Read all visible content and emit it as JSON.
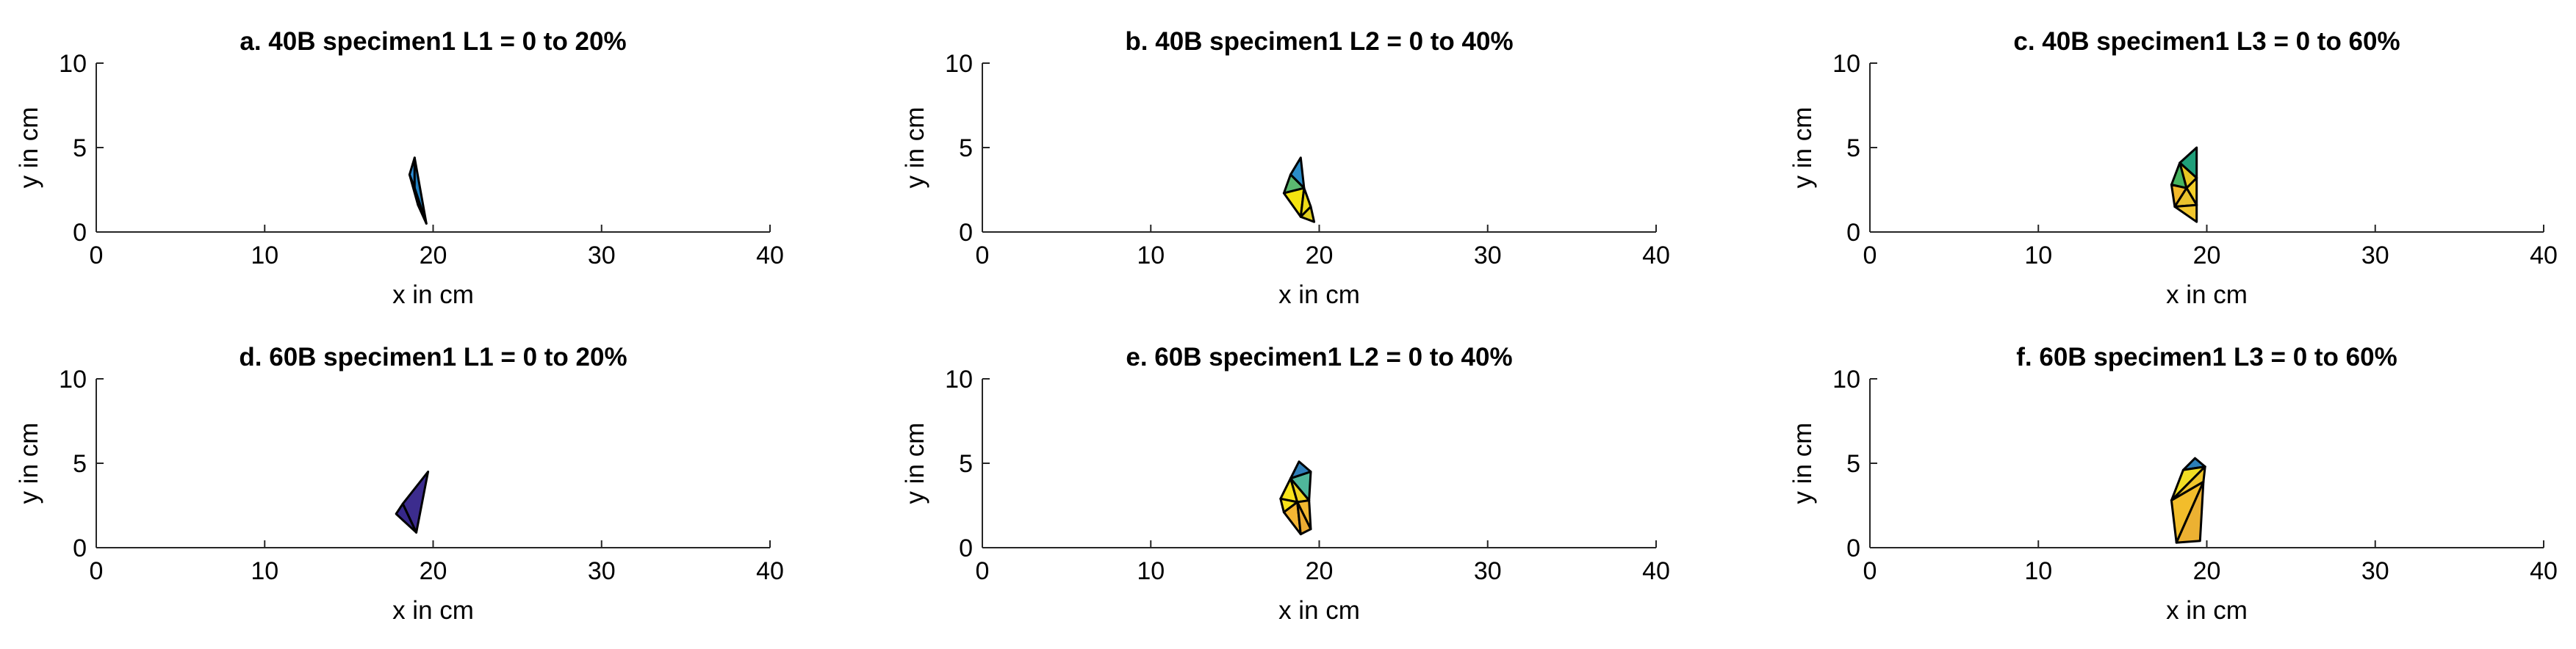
{
  "figure": {
    "background": "#ffffff",
    "axis_color": "#262626",
    "edge_color": "#000000"
  },
  "chart_data": [
    {
      "type": "scatter",
      "subtype": "filled-triangulation",
      "title": "a. 40B specimen1 L1 = 0 to 20%",
      "xlabel": "x in cm",
      "ylabel": "y in cm",
      "xlim": [
        0,
        40
      ],
      "ylim": [
        0,
        10
      ],
      "xticks": [
        "0",
        "10",
        "20",
        "30",
        "40"
      ],
      "yticks": [
        "0",
        "5",
        "10"
      ],
      "grid": false,
      "points": [
        [
          18.9,
          4.4
        ],
        [
          18.6,
          3.4
        ],
        [
          18.9,
          2.6
        ],
        [
          19.1,
          1.6
        ],
        [
          19.6,
          0.5
        ]
      ],
      "triangles": [
        {
          "v": [
            0,
            1,
            2
          ],
          "color": "#2C8FD9"
        },
        {
          "v": [
            0,
            2,
            4
          ],
          "color": "#1F7FC0"
        },
        {
          "v": [
            1,
            2,
            3
          ],
          "color": "#F9E521"
        },
        {
          "v": [
            2,
            3,
            4
          ],
          "color": "#E8D21C"
        }
      ]
    },
    {
      "type": "scatter",
      "subtype": "filled-triangulation",
      "title": "b. 40B specimen1 L2 = 0 to 40%",
      "xlabel": "x in cm",
      "ylabel": "y in cm",
      "xlim": [
        0,
        40
      ],
      "ylim": [
        0,
        10
      ],
      "xticks": [
        "0",
        "10",
        "20",
        "30",
        "40"
      ],
      "yticks": [
        "0",
        "5",
        "10"
      ],
      "grid": false,
      "points": [
        [
          18.9,
          4.4
        ],
        [
          18.3,
          3.4
        ],
        [
          17.9,
          2.3
        ],
        [
          19.1,
          2.6
        ],
        [
          19.5,
          1.5
        ],
        [
          19.7,
          0.6
        ],
        [
          18.9,
          0.9
        ]
      ],
      "triangles": [
        {
          "v": [
            0,
            1,
            3
          ],
          "color": "#2A8CC8"
        },
        {
          "v": [
            1,
            2,
            3
          ],
          "color": "#5BB870"
        },
        {
          "v": [
            2,
            3,
            6
          ],
          "color": "#F5E30F"
        },
        {
          "v": [
            3,
            4,
            6
          ],
          "color": "#EEDB18"
        },
        {
          "v": [
            4,
            5,
            6
          ],
          "color": "#E2CF20"
        }
      ]
    },
    {
      "type": "scatter",
      "subtype": "filled-triangulation",
      "title": "c. 40B specimen1 L3 = 0 to 60%",
      "xlabel": "x in cm",
      "ylabel": "y in cm",
      "xlim": [
        0,
        40
      ],
      "ylim": [
        0,
        10
      ],
      "xticks": [
        "0",
        "10",
        "20",
        "30",
        "40"
      ],
      "yticks": [
        "0",
        "5",
        "10"
      ],
      "grid": false,
      "points": [
        [
          19.4,
          5.0
        ],
        [
          18.4,
          4.1
        ],
        [
          17.9,
          2.8
        ],
        [
          18.1,
          1.5
        ],
        [
          19.4,
          0.6
        ],
        [
          19.4,
          3.2
        ],
        [
          18.8,
          2.6
        ],
        [
          19.4,
          1.6
        ]
      ],
      "triangles": [
        {
          "v": [
            0,
            1,
            5
          ],
          "color": "#1F9F7A"
        },
        {
          "v": [
            1,
            2,
            6
          ],
          "color": "#46B460"
        },
        {
          "v": [
            1,
            5,
            6
          ],
          "color": "#E8C522"
        },
        {
          "v": [
            2,
            3,
            6
          ],
          "color": "#F2B82A"
        },
        {
          "v": [
            5,
            6,
            7
          ],
          "color": "#F4D02A"
        },
        {
          "v": [
            3,
            6,
            7
          ],
          "color": "#E9C22D"
        },
        {
          "v": [
            3,
            4,
            7
          ],
          "color": "#F2C72E"
        }
      ]
    },
    {
      "type": "scatter",
      "subtype": "filled-triangulation",
      "title": "d. 60B specimen1 L1 = 0 to 20%",
      "xlabel": "x in cm",
      "ylabel": "y in cm",
      "xlim": [
        0,
        40
      ],
      "ylim": [
        0,
        10
      ],
      "xticks": [
        "0",
        "10",
        "20",
        "30",
        "40"
      ],
      "yticks": [
        "0",
        "5",
        "10"
      ],
      "grid": false,
      "points": [
        [
          19.7,
          4.5
        ],
        [
          18.2,
          2.6
        ],
        [
          17.8,
          2.0
        ],
        [
          19.0,
          0.9
        ]
      ],
      "triangles": [
        {
          "v": [
            0,
            1,
            3
          ],
          "color": "#3C2C8E"
        },
        {
          "v": [
            1,
            2,
            3
          ],
          "color": "#36288A"
        }
      ]
    },
    {
      "type": "scatter",
      "subtype": "filled-triangulation",
      "title": "e. 60B specimen1 L2 = 0 to 40%",
      "xlabel": "x in cm",
      "ylabel": "y in cm",
      "xlim": [
        0,
        40
      ],
      "ylim": [
        0,
        10
      ],
      "xticks": [
        "0",
        "10",
        "20",
        "30",
        "40"
      ],
      "yticks": [
        "0",
        "5",
        "10"
      ],
      "grid": false,
      "points": [
        [
          18.8,
          5.1
        ],
        [
          18.3,
          4.1
        ],
        [
          17.7,
          2.9
        ],
        [
          17.9,
          2.1
        ],
        [
          18.9,
          0.8
        ],
        [
          19.5,
          1.1
        ],
        [
          19.5,
          4.5
        ],
        [
          18.7,
          2.7
        ],
        [
          19.4,
          2.8
        ]
      ],
      "triangles": [
        {
          "v": [
            0,
            1,
            6
          ],
          "color": "#2F7FB8"
        },
        {
          "v": [
            1,
            6,
            8
          ],
          "color": "#4FB79B"
        },
        {
          "v": [
            1,
            2,
            7
          ],
          "color": "#F8E41B"
        },
        {
          "v": [
            1,
            7,
            8
          ],
          "color": "#EFD621"
        },
        {
          "v": [
            2,
            3,
            7
          ],
          "color": "#F5E11A"
        },
        {
          "v": [
            3,
            7,
            4
          ],
          "color": "#F4B533"
        },
        {
          "v": [
            7,
            8,
            5
          ],
          "color": "#F1B831"
        },
        {
          "v": [
            7,
            4,
            5
          ],
          "color": "#EDAC32"
        }
      ]
    },
    {
      "type": "scatter",
      "subtype": "filled-triangulation",
      "title": "f. 60B specimen1 L3 = 0 to 60%",
      "xlabel": "x in cm",
      "ylabel": "y in cm",
      "xlim": [
        0,
        40
      ],
      "ylim": [
        0,
        10
      ],
      "xticks": [
        "0",
        "10",
        "20",
        "30",
        "40"
      ],
      "yticks": [
        "0",
        "5",
        "10"
      ],
      "grid": false,
      "points": [
        [
          19.3,
          5.3
        ],
        [
          18.6,
          4.6
        ],
        [
          19.9,
          4.8
        ],
        [
          17.9,
          2.8
        ],
        [
          18.2,
          0.3
        ],
        [
          19.6,
          0.4
        ],
        [
          19.8,
          3.9
        ]
      ],
      "triangles": [
        {
          "v": [
            0,
            1,
            2
          ],
          "color": "#2C7FB8"
        },
        {
          "v": [
            1,
            2,
            3
          ],
          "color": "#F2DE24"
        },
        {
          "v": [
            2,
            3,
            6
          ],
          "color": "#EFC52B"
        },
        {
          "v": [
            3,
            4,
            6
          ],
          "color": "#F2BD2B"
        },
        {
          "v": [
            4,
            5,
            6
          ],
          "color": "#ECB132"
        }
      ]
    }
  ]
}
